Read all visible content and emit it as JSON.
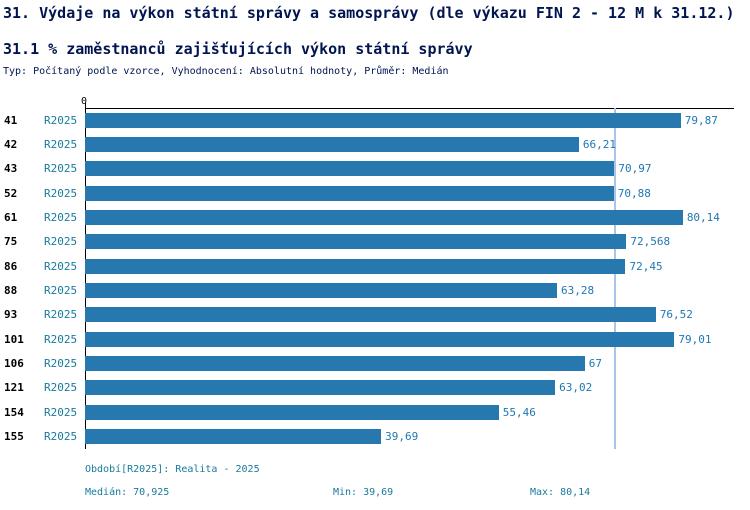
{
  "title": "31. Výdaje na výkon státní správy a samosprávy (dle výkazu FIN 2 - 12 M k 31.12.)",
  "subtitle": "31.1 % zaměstnanců zajišťujících výkon státní správy",
  "meta": "Typ: Počítaný podle vzorce, Vyhodnocení: Absolutní hodnoty, Průměr: Medián",
  "chart_data": {
    "type": "bar",
    "orientation": "horizontal",
    "title": "31.1 % zaměstnanců zajišťujících výkon státní správy",
    "categories": [
      "41",
      "42",
      "43",
      "52",
      "61",
      "75",
      "86",
      "88",
      "93",
      "101",
      "106",
      "121",
      "154",
      "155"
    ],
    "series_label": "R2025",
    "values": [
      79.87,
      66.21,
      70.97,
      70.88,
      80.14,
      72.568,
      72.45,
      63.28,
      76.52,
      79.01,
      67,
      63.02,
      55.46,
      39.69
    ],
    "value_labels": [
      "79,87",
      "66,21",
      "70,97",
      "70,88",
      "80,14",
      "72,568",
      "72,45",
      "63,28",
      "76,52",
      "79,01",
      "67",
      "63,02",
      "55,46",
      "39,69"
    ],
    "xlim": [
      0,
      87
    ],
    "origin_tick": "0",
    "median": 70.925,
    "legend_position": "none",
    "grid": false
  },
  "footer": {
    "period": "Období[R2025]: Realita - 2025",
    "median": "Medián: 70,925",
    "min": "Min: 39,69",
    "max": "Max: 80,14"
  },
  "colors": {
    "heading": "#001450",
    "teal": "#177a9c",
    "value": "#1f77b4",
    "bar": "#2878b0",
    "median": "#a9c6e8",
    "axis": "#000000",
    "category": "#000000"
  }
}
